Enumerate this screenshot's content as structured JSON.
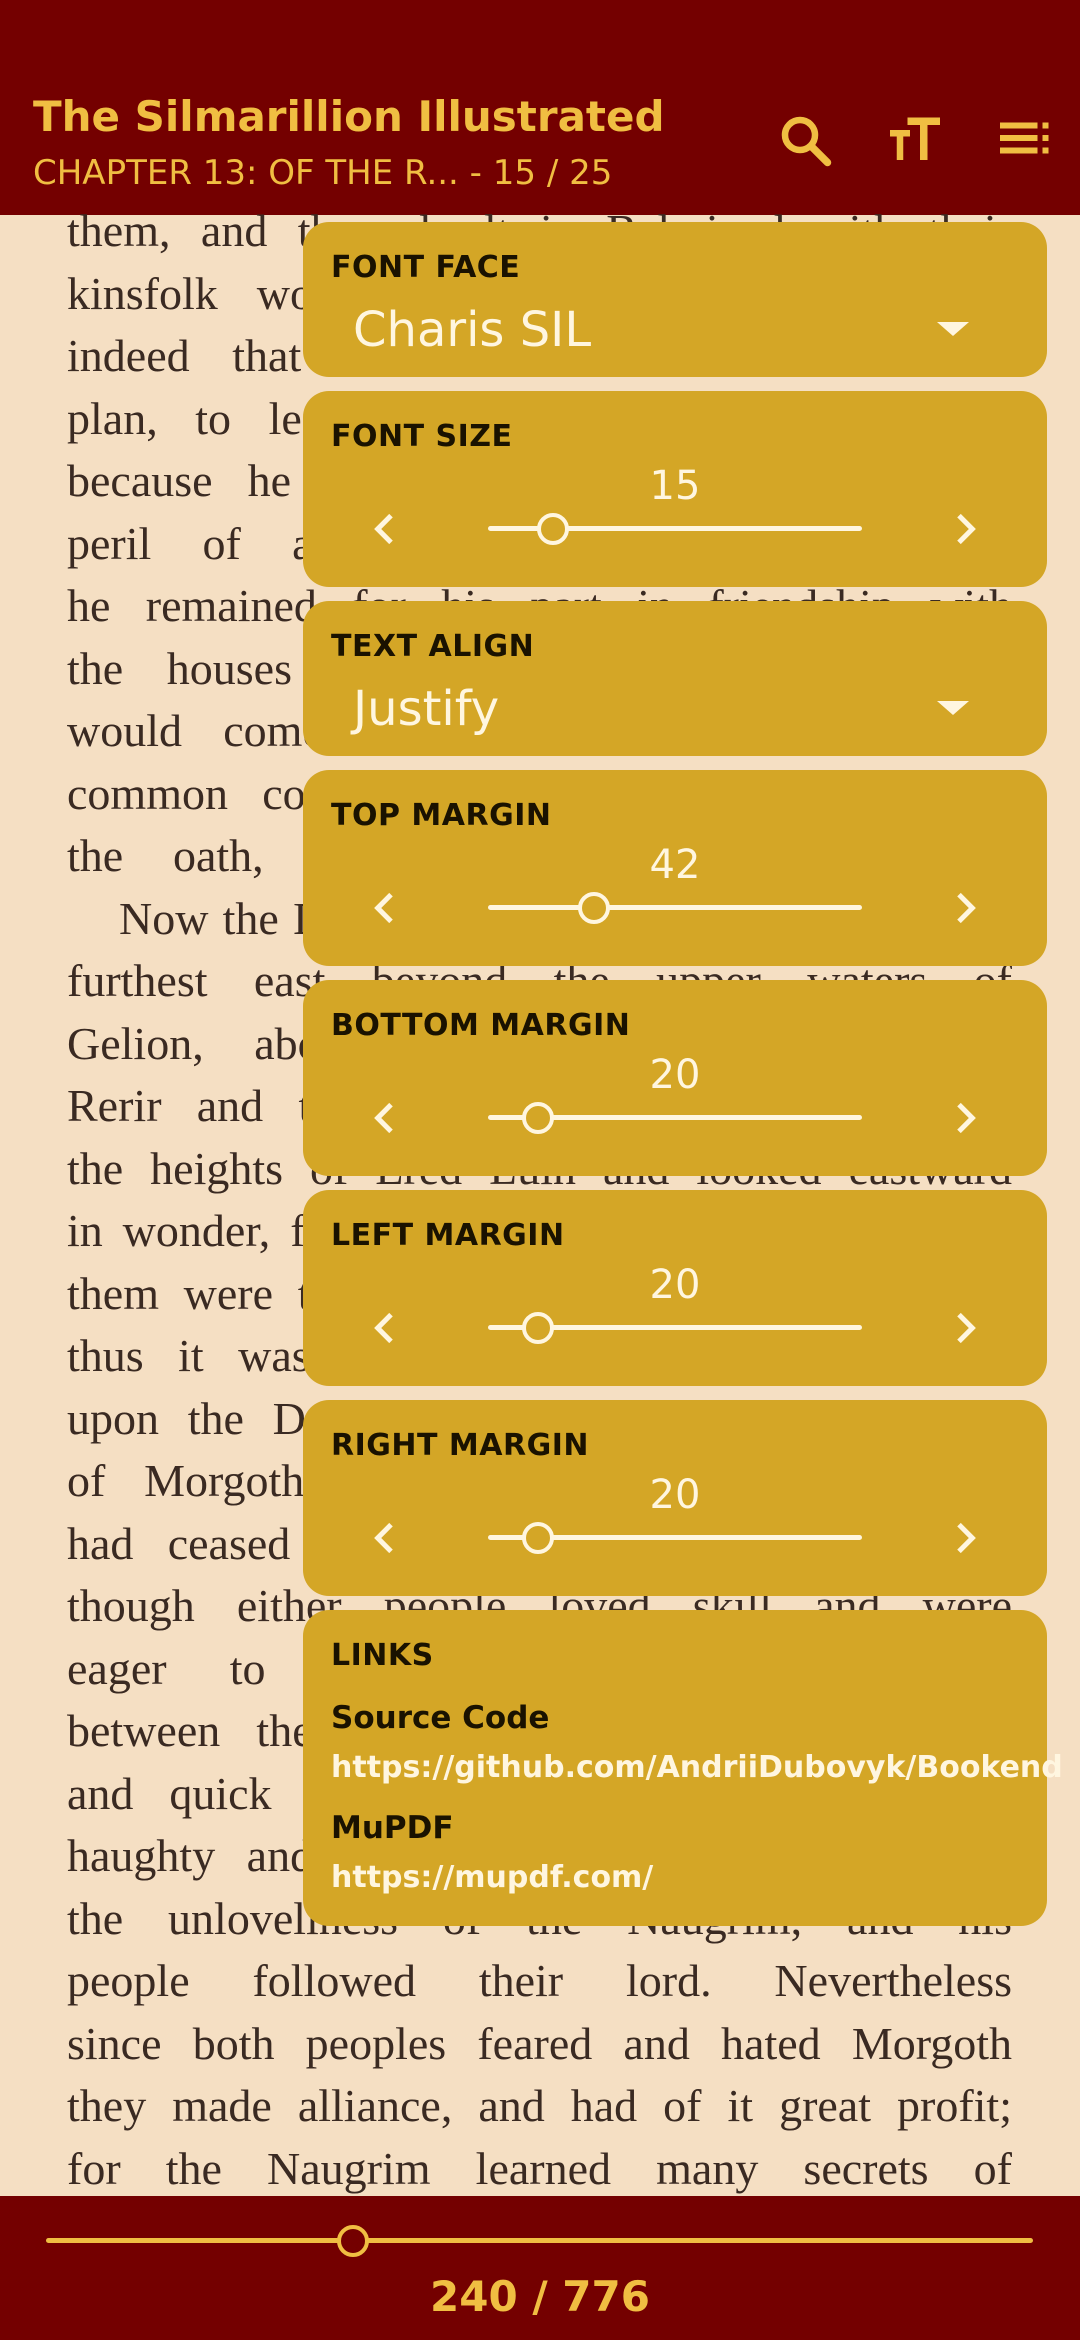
{
  "appbar": {
    "title": "The Silmarillion Illustrated",
    "subtitle": "CHAPTER 13: OF THE R... - 15 / 25",
    "icons": [
      "search-icon",
      "text-size-icon",
      "toc-icon"
    ]
  },
  "book_text": [
    "them, and they dwelt in Beleriand with their",
    "kinsfolk would meet no other; and it was",
    "indeed that son of Fëanor that made the",
    "plan, to leave not the fortress of Himring,",
    "because he deemed it of most need in the",
    "peril of assault out of the North. But",
    "he remained for his part in friendship with",
    "the houses of Fingolfin and Finarfin, and",
    "would come at times to their councils in",
    "common counsel; yet he was not bound by",
    "the oath, though in Beleriand he dwelt.",
    "Now the Dwarves of the Blue Mountains in the",
    "furthest east beyond the upper waters of",
    "Gelion, above the rivers of Ascar, over",
    "Rerir and to the north of Ered Luin, from",
    "the heights of Ered Luin and looked eastward",
    "in wonder, for the Noldor came to them; and of",
    "them were the first of the Eldar that met; and",
    "thus it was that the Naugrim took to walk",
    "upon the Dark roads of the further lands hid",
    "of Morgoth, nor of the Dwarves, for they",
    "had ceased to have dealings with the Elves",
    "though either people loved skill and were",
    "eager to learn, there was little love",
    "between them; for the Dwarves were secret",
    "and quick to resentment, and Caranthir was",
    "haughty and scarcely concealed his scorn for",
    "the unloveliness of the Naugrim, and his",
    "people followed their lord. Nevertheless",
    "since both peoples feared and hated Morgoth",
    "they made alliance, and had of it great profit;",
    "for the Naugrim learned many secrets of"
  ],
  "settings": {
    "font_face": {
      "label": "FONT FACE",
      "value": "Charis SIL"
    },
    "font_size": {
      "label": "FONT SIZE",
      "value": "15",
      "fraction": 0.17
    },
    "text_align": {
      "label": "TEXT ALIGN",
      "value": "Justify"
    },
    "top_margin": {
      "label": "TOP MARGIN",
      "value": "42",
      "fraction": 0.28
    },
    "bottom_margin": {
      "label": "BOTTOM MARGIN",
      "value": "20",
      "fraction": 0.13
    },
    "left_margin": {
      "label": "LEFT MARGIN",
      "value": "20",
      "fraction": 0.13
    },
    "right_margin": {
      "label": "RIGHT MARGIN",
      "value": "20",
      "fraction": 0.13
    },
    "links": {
      "label": "LINKS",
      "source_label": "Source Code",
      "source_url": "https://github.com/AndriiDubovyk/Bookend",
      "mupdf_label": "MuPDF",
      "mupdf_url": "https://mupdf.com/"
    }
  },
  "bottombar": {
    "page_count": "240 / 776",
    "progress_fraction": 0.31
  },
  "colors": {
    "bar": "#740000",
    "accent": "#F0BE42",
    "card": "#D4A626",
    "page": "#F5DFC3"
  }
}
